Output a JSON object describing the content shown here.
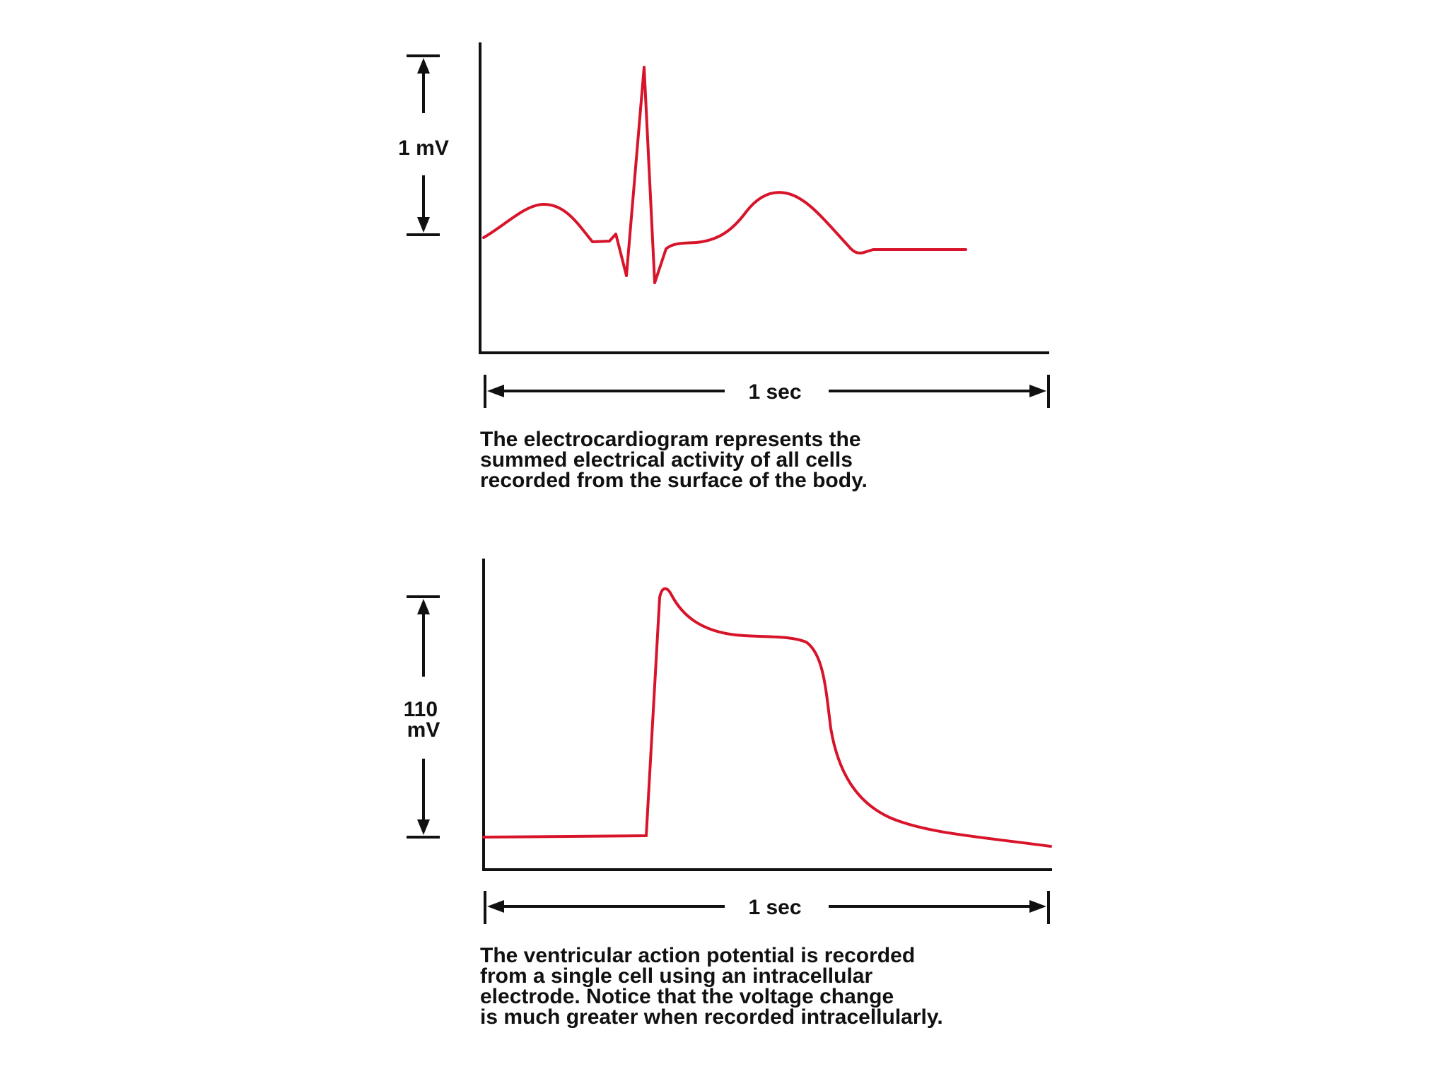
{
  "colors": {
    "trace": "#d7142a",
    "ink": "#111111",
    "background": "#ffffff"
  },
  "panels": [
    {
      "name": "electrocardiogram",
      "voltage_scale": "1 mV",
      "time_scale": "1 sec",
      "caption_lines": [
        "The electrocardiogram represents the",
        "summed electrical activity of all cells",
        "recorded from the surface of the body."
      ]
    },
    {
      "name": "ventricular-action-potential",
      "voltage_scale_lines": [
        "110",
        "mV"
      ],
      "time_scale": "1 sec",
      "caption_lines": [
        "The ventricular action potential is recorded",
        "from a single cell using an intracellular",
        "electrode. Notice that the voltage change",
        "is much greater when recorded intracellularly."
      ]
    }
  ]
}
